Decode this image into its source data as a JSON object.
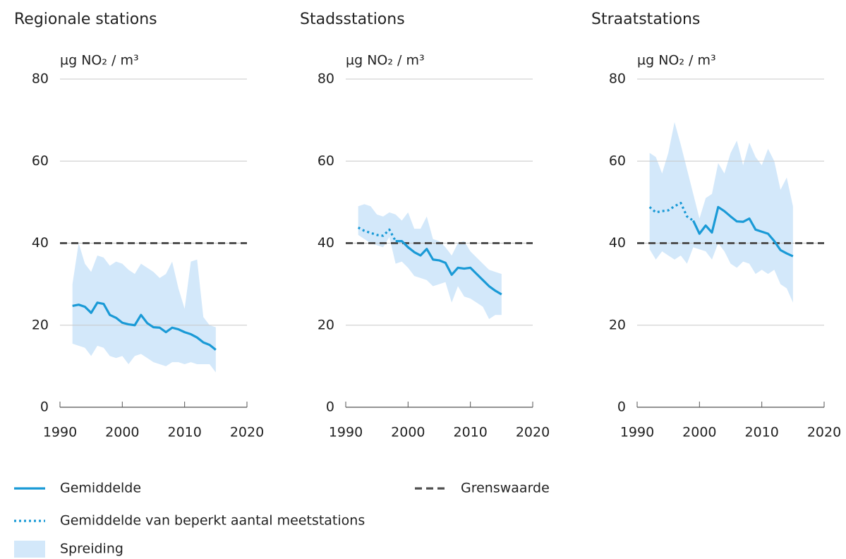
{
  "legend": [
    {
      "key": "mean",
      "name": "Gemiddelde",
      "color": "#1a9ad6",
      "dash": ""
    },
    {
      "key": "mean_limited",
      "name": "Gemiddelde van beperkt aantal meetstations",
      "color": "#1a9ad6",
      "dash": "3 4"
    },
    {
      "key": "band",
      "name": "Spreiding",
      "color": "#d3e8fa"
    },
    {
      "key": "limit",
      "name": "Grenswaarde",
      "color": "#505050",
      "dash": "10 6"
    }
  ],
  "chart_data": [
    {
      "type": "line",
      "title": "Regionale stations",
      "y_label": "µg NO₂ / m³",
      "xlim": [
        1990,
        2020
      ],
      "xticks": [
        1990,
        2000,
        2010,
        2020
      ],
      "ylim": [
        0,
        80
      ],
      "yticks": [
        0,
        20,
        40,
        60,
        80
      ],
      "grid": true,
      "limit": 40,
      "x": [
        1992,
        1993,
        1994,
        1995,
        1996,
        1997,
        1998,
        1999,
        2000,
        2001,
        2002,
        2003,
        2004,
        2005,
        2006,
        2007,
        2008,
        2009,
        2010,
        2011,
        2012,
        2013,
        2014,
        2015
      ],
      "mean": [
        24.7,
        25,
        24.5,
        23,
        25.5,
        25.2,
        22.5,
        21.8,
        20.6,
        20.2,
        20,
        22.5,
        20.5,
        19.5,
        19.4,
        18.3,
        19.4,
        19,
        18.3,
        17.8,
        17,
        15.8,
        15.2,
        14
      ],
      "band_high": [
        30,
        40,
        35,
        33,
        37,
        36.5,
        34.5,
        35.5,
        35,
        33.5,
        32.5,
        35,
        34,
        33,
        31.5,
        32.5,
        35.5,
        29,
        24,
        35.5,
        36,
        22,
        20,
        19.5
      ],
      "band_low": [
        15.5,
        15,
        14.5,
        12.5,
        15,
        14.5,
        12.5,
        12,
        12.5,
        10.5,
        12.5,
        13,
        12,
        11,
        10.5,
        10,
        11,
        11,
        10.5,
        11,
        10.5,
        10.5,
        10.5,
        8.5
      ]
    },
    {
      "type": "line",
      "title": "Stadsstations",
      "y_label": "µg NO₂ / m³",
      "xlim": [
        1990,
        2020
      ],
      "xticks": [
        1990,
        2000,
        2010,
        2020
      ],
      "ylim": [
        0,
        80
      ],
      "yticks": [
        0,
        20,
        40,
        60,
        80
      ],
      "grid": true,
      "limit": 40,
      "x": [
        1992,
        1993,
        1994,
        1995,
        1996,
        1997,
        1998,
        1999,
        2000,
        2001,
        2002,
        2003,
        2004,
        2005,
        2006,
        2007,
        2008,
        2009,
        2010,
        2011,
        2012,
        2013,
        2014,
        2015
      ],
      "mean": [
        null,
        null,
        null,
        null,
        null,
        null,
        40.5,
        40.5,
        39,
        37.8,
        37,
        38.6,
        36,
        35.8,
        35.2,
        32.3,
        34,
        33.8,
        34,
        32.5,
        31,
        29.5,
        28.4,
        27.5
      ],
      "mean_limited": [
        43.8,
        43,
        42.5,
        42,
        41.8,
        43.3,
        40.5,
        null,
        null,
        null,
        null,
        null,
        null,
        null,
        null,
        null,
        null,
        null,
        null,
        null,
        null,
        null,
        null,
        null
      ],
      "band_high": [
        49,
        49.5,
        49,
        47,
        46.5,
        47.5,
        47,
        45.5,
        47.5,
        43.5,
        43.5,
        46.5,
        41,
        40.5,
        39,
        37,
        40,
        40.5,
        38,
        36.5,
        35,
        33.5,
        33,
        32.5
      ],
      "band_low": [
        42,
        41,
        40,
        39.5,
        39,
        41.5,
        35,
        35.5,
        34,
        32,
        31.5,
        31,
        29.5,
        30,
        30.5,
        25.5,
        29.5,
        27,
        26.5,
        25.5,
        24.5,
        21.5,
        22.5,
        22.5
      ]
    },
    {
      "type": "line",
      "title": "Straatstations",
      "y_label": "µg NO₂ / m³",
      "xlim": [
        1990,
        2020
      ],
      "xticks": [
        1990,
        2000,
        2010,
        2020
      ],
      "ylim": [
        0,
        80
      ],
      "yticks": [
        0,
        20,
        40,
        60,
        80
      ],
      "grid": true,
      "limit": 40,
      "x": [
        1992,
        1993,
        1994,
        1995,
        1996,
        1997,
        1998,
        1999,
        2000,
        2001,
        2002,
        2003,
        2004,
        2005,
        2006,
        2007,
        2008,
        2009,
        2010,
        2011,
        2012,
        2013,
        2014,
        2015
      ],
      "mean": [
        null,
        null,
        null,
        null,
        null,
        null,
        null,
        45.5,
        42.3,
        44.3,
        42.6,
        48.8,
        47.8,
        46.5,
        45.3,
        45.2,
        46,
        43.3,
        42.8,
        42.3,
        40.5,
        38.3,
        37.5,
        36.8
      ],
      "mean_limited": [
        48.8,
        47.5,
        47.8,
        48,
        49,
        49.8,
        46.5,
        45.5,
        null,
        null,
        null,
        null,
        null,
        null,
        null,
        null,
        null,
        null,
        null,
        null,
        null,
        null,
        null,
        null
      ],
      "band_high": [
        62,
        61,
        57,
        62,
        69.5,
        64,
        58,
        52,
        46,
        51,
        52,
        59.5,
        57,
        62,
        65,
        59,
        64.5,
        61,
        59,
        63,
        60,
        53,
        56,
        49
      ],
      "band_low": [
        38.5,
        36,
        38,
        37,
        36,
        37,
        35,
        39,
        38.5,
        38,
        36,
        40,
        38,
        35,
        34,
        35.5,
        35,
        32.5,
        33.5,
        32.5,
        33.5,
        30,
        29,
        25.5
      ]
    }
  ]
}
